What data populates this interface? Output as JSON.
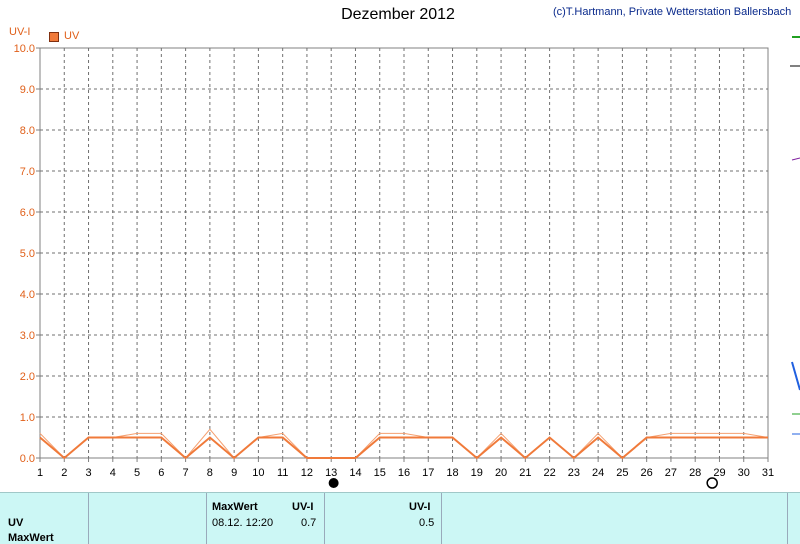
{
  "chart_data": {
    "type": "line",
    "title": "Dezember 2012",
    "credit": "(c)T.Hartmann, Private Wetterstation Ballersbach",
    "ylabel": "UV-I",
    "xlabel": "",
    "ylim": [
      0,
      10
    ],
    "xlim": [
      1,
      31
    ],
    "y_ticks": [
      "0.0",
      "1.0",
      "2.0",
      "3.0",
      "4.0",
      "5.0",
      "6.0",
      "7.0",
      "8.0",
      "9.0",
      "10.0"
    ],
    "x_ticks": [
      "1",
      "2",
      "3",
      "4",
      "5",
      "6",
      "7",
      "8",
      "9",
      "10",
      "11",
      "12",
      "13",
      "14",
      "15",
      "16",
      "17",
      "18",
      "19",
      "20",
      "21",
      "22",
      "23",
      "24",
      "25",
      "26",
      "27",
      "28",
      "29",
      "30",
      "31"
    ],
    "grid": true,
    "legend": "top-left",
    "moon_phases": [
      {
        "day": 13.1,
        "phase": "new"
      },
      {
        "day": 28.7,
        "phase": "full"
      }
    ],
    "series": [
      {
        "name": "UV",
        "color": "#f07a3a",
        "x": [
          1,
          2,
          3,
          4,
          5,
          6,
          7,
          8,
          9,
          10,
          11,
          12,
          13,
          14,
          15,
          16,
          17,
          18,
          19,
          20,
          21,
          22,
          23,
          24,
          25,
          26,
          27,
          28,
          29,
          30,
          31
        ],
        "values": [
          0.5,
          0.0,
          0.5,
          0.5,
          0.5,
          0.5,
          0.0,
          0.5,
          0.0,
          0.5,
          0.5,
          0.0,
          0.0,
          0.0,
          0.5,
          0.5,
          0.5,
          0.5,
          0.0,
          0.5,
          0.0,
          0.5,
          0.0,
          0.5,
          0.0,
          0.5,
          0.5,
          0.5,
          0.5,
          0.5,
          0.5
        ]
      },
      {
        "name": "MaxWert",
        "color": "#f5a070",
        "x": [
          1,
          2,
          3,
          4,
          5,
          6,
          7,
          8,
          9,
          10,
          11,
          12,
          13,
          14,
          15,
          16,
          17,
          18,
          19,
          20,
          21,
          22,
          23,
          24,
          25,
          26,
          27,
          28,
          29,
          30,
          31
        ],
        "values": [
          0.6,
          0.0,
          0.5,
          0.5,
          0.6,
          0.6,
          0.0,
          0.7,
          0.0,
          0.5,
          0.6,
          0.0,
          0.0,
          0.0,
          0.6,
          0.6,
          0.5,
          0.5,
          0.0,
          0.6,
          0.0,
          0.5,
          0.0,
          0.6,
          0.0,
          0.5,
          0.6,
          0.6,
          0.6,
          0.6,
          0.5
        ]
      }
    ]
  },
  "legend_label": "UV",
  "table": {
    "row1_label": "UV",
    "row2_label": "MaxWert",
    "col_maxwert": "MaxWert",
    "col_unit1": "UV-I",
    "col_unit2": "UV-I",
    "max_datetime": "08.12.  12:20",
    "max_value": "0.7",
    "avg_value": "0.5"
  }
}
